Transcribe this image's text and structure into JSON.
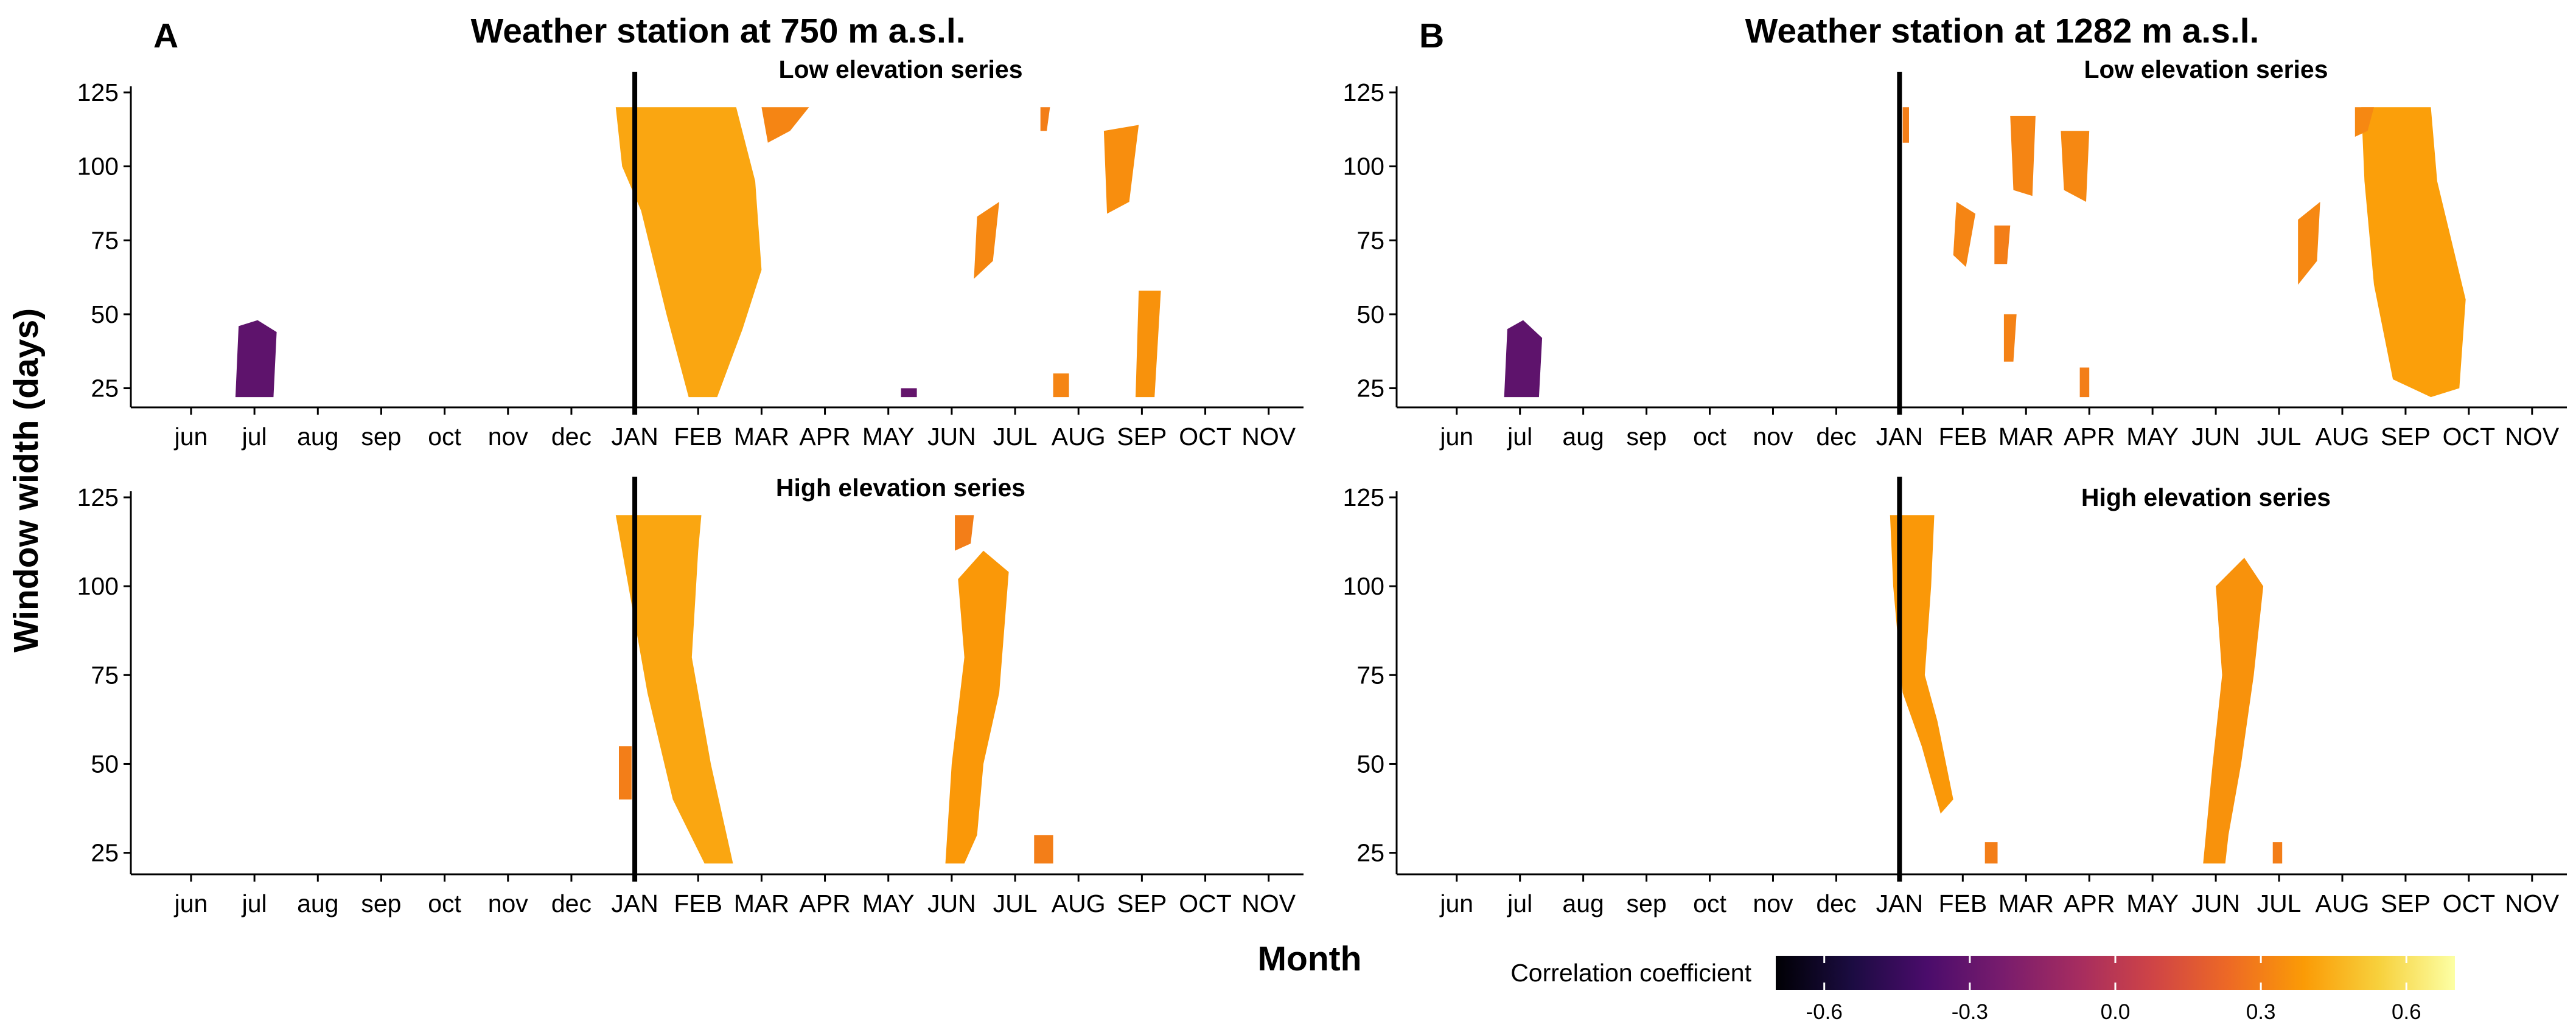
{
  "figure": {
    "ylabel": "Window width (days)",
    "xlabel": "Month",
    "colorbar": {
      "title": "Correlation coefficient",
      "ticks": [
        "-0.6",
        "-0.3",
        "0.0",
        "0.3",
        "0.6"
      ],
      "range": [
        -0.7,
        0.7
      ],
      "colors": [
        "#000004",
        "#1b0c41",
        "#4a0c6b",
        "#781c6d",
        "#a52c60",
        "#cf4446",
        "#ed6925",
        "#fb9b06",
        "#f7d13d",
        "#fcffa4"
      ]
    }
  },
  "chart_data": [
    {
      "panel": "A",
      "title": "Weather station at 750 m a.s.l.",
      "subtitle": "Low elevation series",
      "type": "heatmap",
      "xticks": [
        "jun",
        "jul",
        "aug",
        "sep",
        "oct",
        "nov",
        "dec",
        "JAN",
        "FEB",
        "MAR",
        "APR",
        "MAY",
        "JUN",
        "JUL",
        "AUG",
        "SEP",
        "OCT",
        "NOV"
      ],
      "yticks": [
        "25",
        "50",
        "75",
        "100",
        "125"
      ],
      "ylim": [
        21,
        125
      ],
      "vline": 7,
      "blobs": [
        {
          "pts": [
            [
              0.7,
              22
            ],
            [
              1.3,
              22
            ],
            [
              1.35,
              44
            ],
            [
              1.05,
              48
            ],
            [
              0.75,
              46
            ]
          ],
          "r": -0.32
        },
        {
          "pts": [
            [
              6.7,
              120
            ],
            [
              8.6,
              120
            ],
            [
              8.9,
              95
            ],
            [
              9.0,
              65
            ],
            [
              8.7,
              45
            ],
            [
              8.3,
              22
            ],
            [
              7.85,
              22
            ],
            [
              7.5,
              50
            ],
            [
              7.1,
              85
            ],
            [
              6.8,
              100
            ]
          ],
          "r": 0.42
        },
        {
          "pts": [
            [
              9.0,
              120
            ],
            [
              9.75,
              120
            ],
            [
              9.45,
              112
            ],
            [
              9.1,
              108
            ]
          ],
          "r": 0.32
        },
        {
          "pts": [
            [
              12.4,
              83
            ],
            [
              12.75,
              88
            ],
            [
              12.65,
              68
            ],
            [
              12.35,
              62
            ]
          ],
          "r": 0.33
        },
        {
          "pts": [
            [
              14.4,
              112
            ],
            [
              14.95,
              114
            ],
            [
              14.8,
              88
            ],
            [
              14.45,
              84
            ]
          ],
          "r": 0.35
        },
        {
          "pts": [
            [
              14.95,
              58
            ],
            [
              15.3,
              58
            ],
            [
              15.2,
              22
            ],
            [
              14.9,
              22
            ]
          ],
          "r": 0.36
        },
        {
          "pts": [
            [
              13.6,
              30
            ],
            [
              13.85,
              30
            ],
            [
              13.85,
              22
            ],
            [
              13.6,
              22
            ]
          ],
          "r": 0.32
        },
        {
          "pts": [
            [
              11.2,
              25
            ],
            [
              11.45,
              25
            ],
            [
              11.45,
              22
            ],
            [
              11.2,
              22
            ]
          ],
          "r": -0.3
        },
        {
          "pts": [
            [
              13.4,
              120
            ],
            [
              13.55,
              120
            ],
            [
              13.5,
              112
            ],
            [
              13.4,
              112
            ]
          ],
          "r": 0.3
        }
      ]
    },
    {
      "panel": "B",
      "title": "Weather station at 1282 m a.s.l.",
      "subtitle": "Low elevation series",
      "type": "heatmap",
      "xticks": [
        "jun",
        "jul",
        "aug",
        "sep",
        "oct",
        "nov",
        "dec",
        "JAN",
        "FEB",
        "MAR",
        "APR",
        "MAY",
        "JUN",
        "JUL",
        "AUG",
        "SEP",
        "OCT",
        "NOV"
      ],
      "yticks": [
        "25",
        "50",
        "75",
        "100",
        "125"
      ],
      "ylim": [
        21,
        125
      ],
      "vline": 7,
      "blobs": [
        {
          "pts": [
            [
              0.75,
              22
            ],
            [
              1.3,
              22
            ],
            [
              1.35,
              42
            ],
            [
              1.05,
              48
            ],
            [
              0.8,
              45
            ]
          ],
          "r": -0.32
        },
        {
          "pts": [
            [
              14.3,
              120
            ],
            [
              15.4,
              120
            ],
            [
              15.5,
              95
            ],
            [
              15.95,
              55
            ],
            [
              15.85,
              25
            ],
            [
              15.4,
              22
            ],
            [
              14.8,
              28
            ],
            [
              14.5,
              60
            ],
            [
              14.35,
              95
            ]
          ],
          "r": 0.4
        },
        {
          "pts": [
            [
              14.2,
              120
            ],
            [
              14.5,
              120
            ],
            [
              14.4,
              112
            ],
            [
              14.2,
              110
            ]
          ],
          "r": 0.33
        },
        {
          "pts": [
            [
              8.75,
              117
            ],
            [
              9.15,
              117
            ],
            [
              9.1,
              90
            ],
            [
              8.8,
              92
            ]
          ],
          "r": 0.32
        },
        {
          "pts": [
            [
              9.55,
              112
            ],
            [
              10.0,
              112
            ],
            [
              9.95,
              88
            ],
            [
              9.6,
              92
            ]
          ],
          "r": 0.33
        },
        {
          "pts": [
            [
              7.9,
              88
            ],
            [
              8.2,
              84
            ],
            [
              8.05,
              66
            ],
            [
              7.85,
              70
            ]
          ],
          "r": 0.32
        },
        {
          "pts": [
            [
              8.5,
              80
            ],
            [
              8.75,
              80
            ],
            [
              8.7,
              67
            ],
            [
              8.5,
              67
            ]
          ],
          "r": 0.3
        },
        {
          "pts": [
            [
              8.65,
              50
            ],
            [
              8.85,
              50
            ],
            [
              8.8,
              34
            ],
            [
              8.65,
              34
            ]
          ],
          "r": 0.31
        },
        {
          "pts": [
            [
              13.3,
              82
            ],
            [
              13.65,
              88
            ],
            [
              13.6,
              68
            ],
            [
              13.3,
              60
            ]
          ],
          "r": 0.33
        },
        {
          "pts": [
            [
              7.05,
              120
            ],
            [
              7.15,
              120
            ],
            [
              7.15,
              108
            ],
            [
              7.05,
              108
            ]
          ],
          "r": 0.3
        },
        {
          "pts": [
            [
              9.85,
              32
            ],
            [
              10.0,
              32
            ],
            [
              10.0,
              22
            ],
            [
              9.85,
              22
            ]
          ],
          "r": 0.3
        }
      ]
    },
    {
      "panel": "",
      "title": "",
      "subtitle": "High elevation series",
      "type": "heatmap",
      "xticks": [
        "jun",
        "jul",
        "aug",
        "sep",
        "oct",
        "nov",
        "dec",
        "JAN",
        "FEB",
        "MAR",
        "APR",
        "MAY",
        "JUN",
        "JUL",
        "AUG",
        "SEP",
        "OCT",
        "NOV"
      ],
      "yticks": [
        "25",
        "50",
        "75",
        "100",
        "125"
      ],
      "ylim": [
        21,
        125
      ],
      "vline": 7,
      "blobs": [
        {
          "pts": [
            [
              6.7,
              120
            ],
            [
              8.05,
              120
            ],
            [
              8.0,
              110
            ],
            [
              7.9,
              80
            ],
            [
              8.2,
              50
            ],
            [
              8.55,
              22
            ],
            [
              8.1,
              22
            ],
            [
              7.6,
              40
            ],
            [
              7.2,
              70
            ],
            [
              6.9,
              100
            ]
          ],
          "r": 0.42
        },
        {
          "pts": [
            [
              12.05,
              120
            ],
            [
              12.35,
              120
            ],
            [
              12.3,
              112
            ],
            [
              12.05,
              110
            ]
          ],
          "r": 0.3
        },
        {
          "pts": [
            [
              12.1,
              102
            ],
            [
              12.5,
              110
            ],
            [
              12.9,
              104
            ],
            [
              12.75,
              70
            ],
            [
              12.5,
              50
            ],
            [
              12.4,
              30
            ],
            [
              12.2,
              22
            ],
            [
              11.9,
              22
            ],
            [
              12.0,
              50
            ],
            [
              12.2,
              80
            ]
          ],
          "r": 0.38
        },
        {
          "pts": [
            [
              13.3,
              30
            ],
            [
              13.6,
              30
            ],
            [
              13.6,
              22
            ],
            [
              13.3,
              22
            ]
          ],
          "r": 0.3
        },
        {
          "pts": [
            [
              6.75,
              55
            ],
            [
              6.95,
              55
            ],
            [
              6.95,
              40
            ],
            [
              6.75,
              40
            ]
          ],
          "r": 0.3
        }
      ]
    },
    {
      "panel": "",
      "title": "",
      "subtitle": "High elevation series",
      "type": "heatmap",
      "xticks": [
        "jun",
        "jul",
        "aug",
        "sep",
        "oct",
        "nov",
        "dec",
        "JAN",
        "FEB",
        "MAR",
        "APR",
        "MAY",
        "JUN",
        "JUL",
        "AUG",
        "SEP",
        "OCT",
        "NOV"
      ],
      "yticks": [
        "25",
        "50",
        "75",
        "100",
        "125"
      ],
      "ylim": [
        21,
        125
      ],
      "vline": 7,
      "blobs": [
        {
          "pts": [
            [
              6.85,
              120
            ],
            [
              7.55,
              120
            ],
            [
              7.5,
              100
            ],
            [
              7.4,
              75
            ],
            [
              7.6,
              62
            ],
            [
              7.85,
              40
            ],
            [
              7.65,
              36
            ],
            [
              7.35,
              55
            ],
            [
              7.05,
              70
            ],
            [
              6.9,
              100
            ]
          ],
          "r": 0.38
        },
        {
          "pts": [
            [
              12.0,
              100
            ],
            [
              12.45,
              108
            ],
            [
              12.75,
              100
            ],
            [
              12.6,
              75
            ],
            [
              12.4,
              50
            ],
            [
              12.2,
              30
            ],
            [
              12.15,
              22
            ],
            [
              11.8,
              22
            ],
            [
              11.95,
              50
            ],
            [
              12.1,
              75
            ]
          ],
          "r": 0.36
        },
        {
          "pts": [
            [
              8.35,
              28
            ],
            [
              8.55,
              28
            ],
            [
              8.55,
              22
            ],
            [
              8.35,
              22
            ]
          ],
          "r": 0.3
        },
        {
          "pts": [
            [
              12.9,
              28
            ],
            [
              13.05,
              28
            ],
            [
              13.05,
              22
            ],
            [
              12.9,
              22
            ]
          ],
          "r": 0.3
        }
      ]
    }
  ]
}
